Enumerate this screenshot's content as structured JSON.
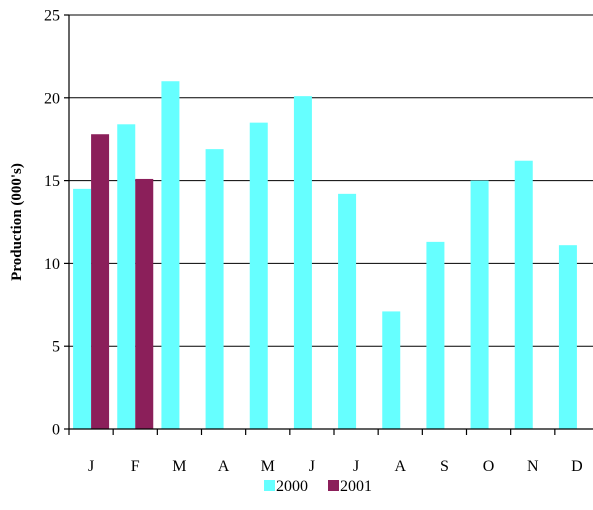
{
  "chart_data": {
    "type": "bar",
    "title": "",
    "xlabel": "",
    "ylabel": "Production (000's)",
    "categories": [
      "J",
      "F",
      "M",
      "A",
      "M",
      "J",
      "J",
      "A",
      "S",
      "O",
      "N",
      "D"
    ],
    "series": [
      {
        "name": "2000",
        "color": "#66ffff",
        "values": [
          14.5,
          18.4,
          21.0,
          16.9,
          18.5,
          20.1,
          14.2,
          7.1,
          11.3,
          15.0,
          16.2,
          11.1
        ]
      },
      {
        "name": "2001",
        "color": "#8b1f5a",
        "values": [
          17.8,
          15.1,
          null,
          null,
          null,
          null,
          null,
          null,
          null,
          null,
          null,
          null
        ]
      }
    ],
    "ylim": [
      0,
      25
    ],
    "yticks": [
      0,
      5,
      10,
      15,
      20,
      25
    ],
    "grid": true,
    "legend_position": "bottom"
  }
}
